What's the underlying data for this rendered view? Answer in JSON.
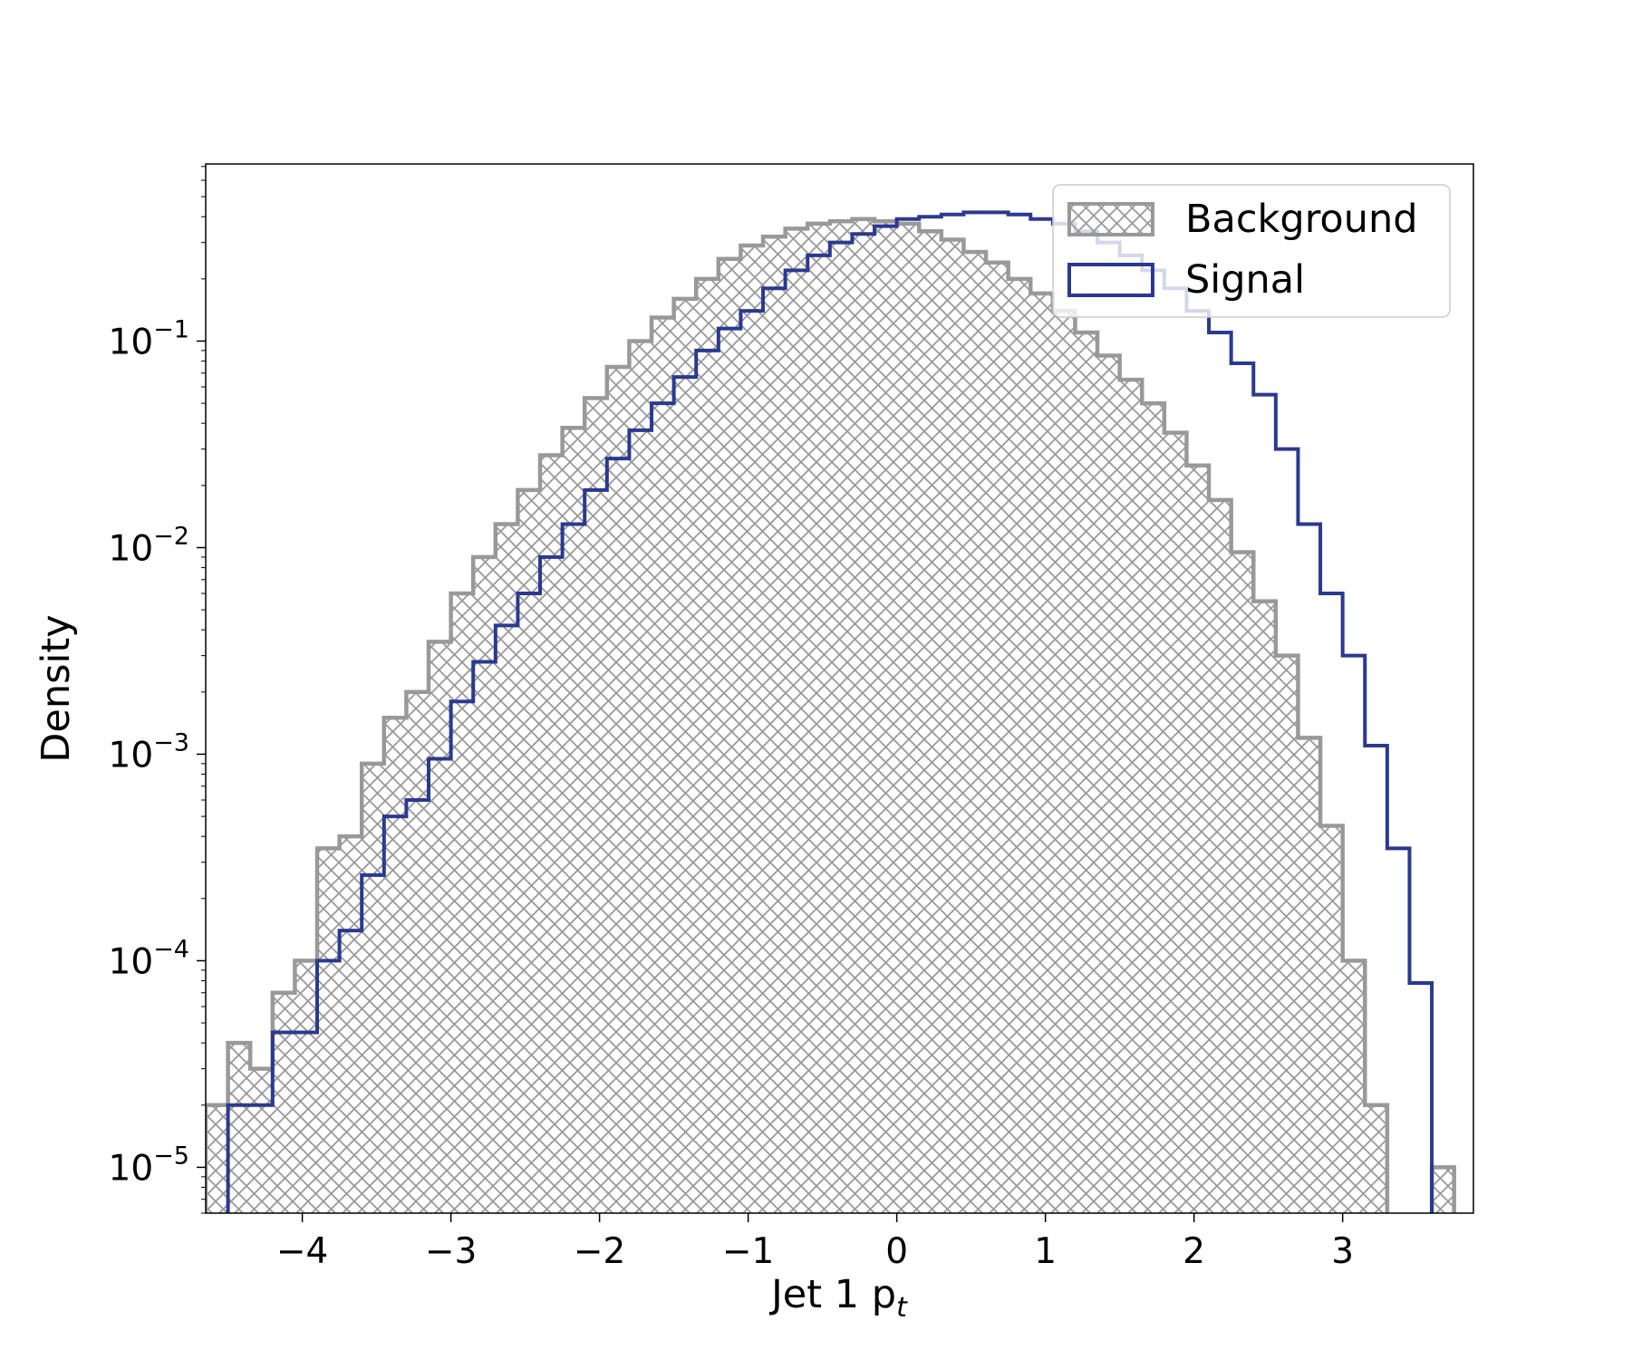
{
  "chart_data": {
    "type": "histogram",
    "xlabel": "Jet 1 p",
    "xlabel_subscript": "t",
    "ylabel": "Density",
    "yscale": "log",
    "xlim": [
      -4.65,
      3.88
    ],
    "ylim": [
      6e-06,
      0.72
    ],
    "xticks": [
      -4,
      -3,
      -2,
      -1,
      0,
      1,
      2,
      3
    ],
    "xtick_labels": [
      "−4",
      "−3",
      "−2",
      "−1",
      "0",
      "1",
      "2",
      "3"
    ],
    "yticks": [
      1e-05,
      0.0001,
      0.001,
      0.01,
      0.1
    ],
    "ytick_labels": [
      {
        "base": "10",
        "exp": "−5"
      },
      {
        "base": "10",
        "exp": "−4"
      },
      {
        "base": "10",
        "exp": "−3"
      },
      {
        "base": "10",
        "exp": "−2"
      },
      {
        "base": "10",
        "exp": "−1"
      }
    ],
    "grid": false,
    "legend_placement": "top-right",
    "bin_edges": [
      -4.65,
      -4.5,
      -4.35,
      -4.2,
      -4.05,
      -3.9,
      -3.75,
      -3.6,
      -3.45,
      -3.3,
      -3.15,
      -3.0,
      -2.85,
      -2.7,
      -2.55,
      -2.4,
      -2.25,
      -2.1,
      -1.95,
      -1.8,
      -1.65,
      -1.5,
      -1.35,
      -1.2,
      -1.05,
      -0.9,
      -0.75,
      -0.6,
      -0.45,
      -0.3,
      -0.15,
      0.0,
      0.15,
      0.3,
      0.45,
      0.6,
      0.75,
      0.9,
      1.05,
      1.2,
      1.35,
      1.5,
      1.65,
      1.8,
      1.95,
      2.1,
      2.25,
      2.4,
      2.55,
      2.7,
      2.85,
      3.0,
      3.15,
      3.3,
      3.45,
      3.6,
      3.75,
      3.9
    ],
    "series": [
      {
        "name": "Background",
        "style": "hatched-step",
        "color": "#999999",
        "values": [
          2e-05,
          4e-05,
          3e-05,
          7e-05,
          0.0001,
          0.00035,
          0.0004,
          0.0009,
          0.0015,
          0.002,
          0.0035,
          0.006,
          0.009,
          0.013,
          0.019,
          0.028,
          0.038,
          0.053,
          0.075,
          0.1,
          0.13,
          0.16,
          0.2,
          0.25,
          0.29,
          0.32,
          0.35,
          0.37,
          0.38,
          0.39,
          0.38,
          0.37,
          0.34,
          0.31,
          0.27,
          0.24,
          0.2,
          0.17,
          0.14,
          0.11,
          0.085,
          0.065,
          0.05,
          0.036,
          0.025,
          0.017,
          0.0095,
          0.0055,
          0.003,
          0.0012,
          0.00045,
          0.0001,
          2e-05,
          0,
          0,
          1e-05,
          0
        ]
      },
      {
        "name": "Signal",
        "style": "step",
        "color": "#2b3990",
        "values": [
          0,
          2e-05,
          2e-05,
          4.5e-05,
          4.5e-05,
          0.0001,
          0.00014,
          0.00026,
          0.0005,
          0.0006,
          0.00095,
          0.0018,
          0.0028,
          0.0042,
          0.006,
          0.009,
          0.013,
          0.019,
          0.027,
          0.037,
          0.05,
          0.067,
          0.09,
          0.115,
          0.14,
          0.18,
          0.22,
          0.26,
          0.3,
          0.33,
          0.36,
          0.39,
          0.4,
          0.41,
          0.42,
          0.42,
          0.41,
          0.39,
          0.37,
          0.34,
          0.3,
          0.26,
          0.22,
          0.18,
          0.14,
          0.11,
          0.078,
          0.055,
          0.03,
          0.013,
          0.006,
          0.003,
          0.0011,
          0.00035,
          7.8e-05,
          0,
          0
        ]
      }
    ]
  }
}
